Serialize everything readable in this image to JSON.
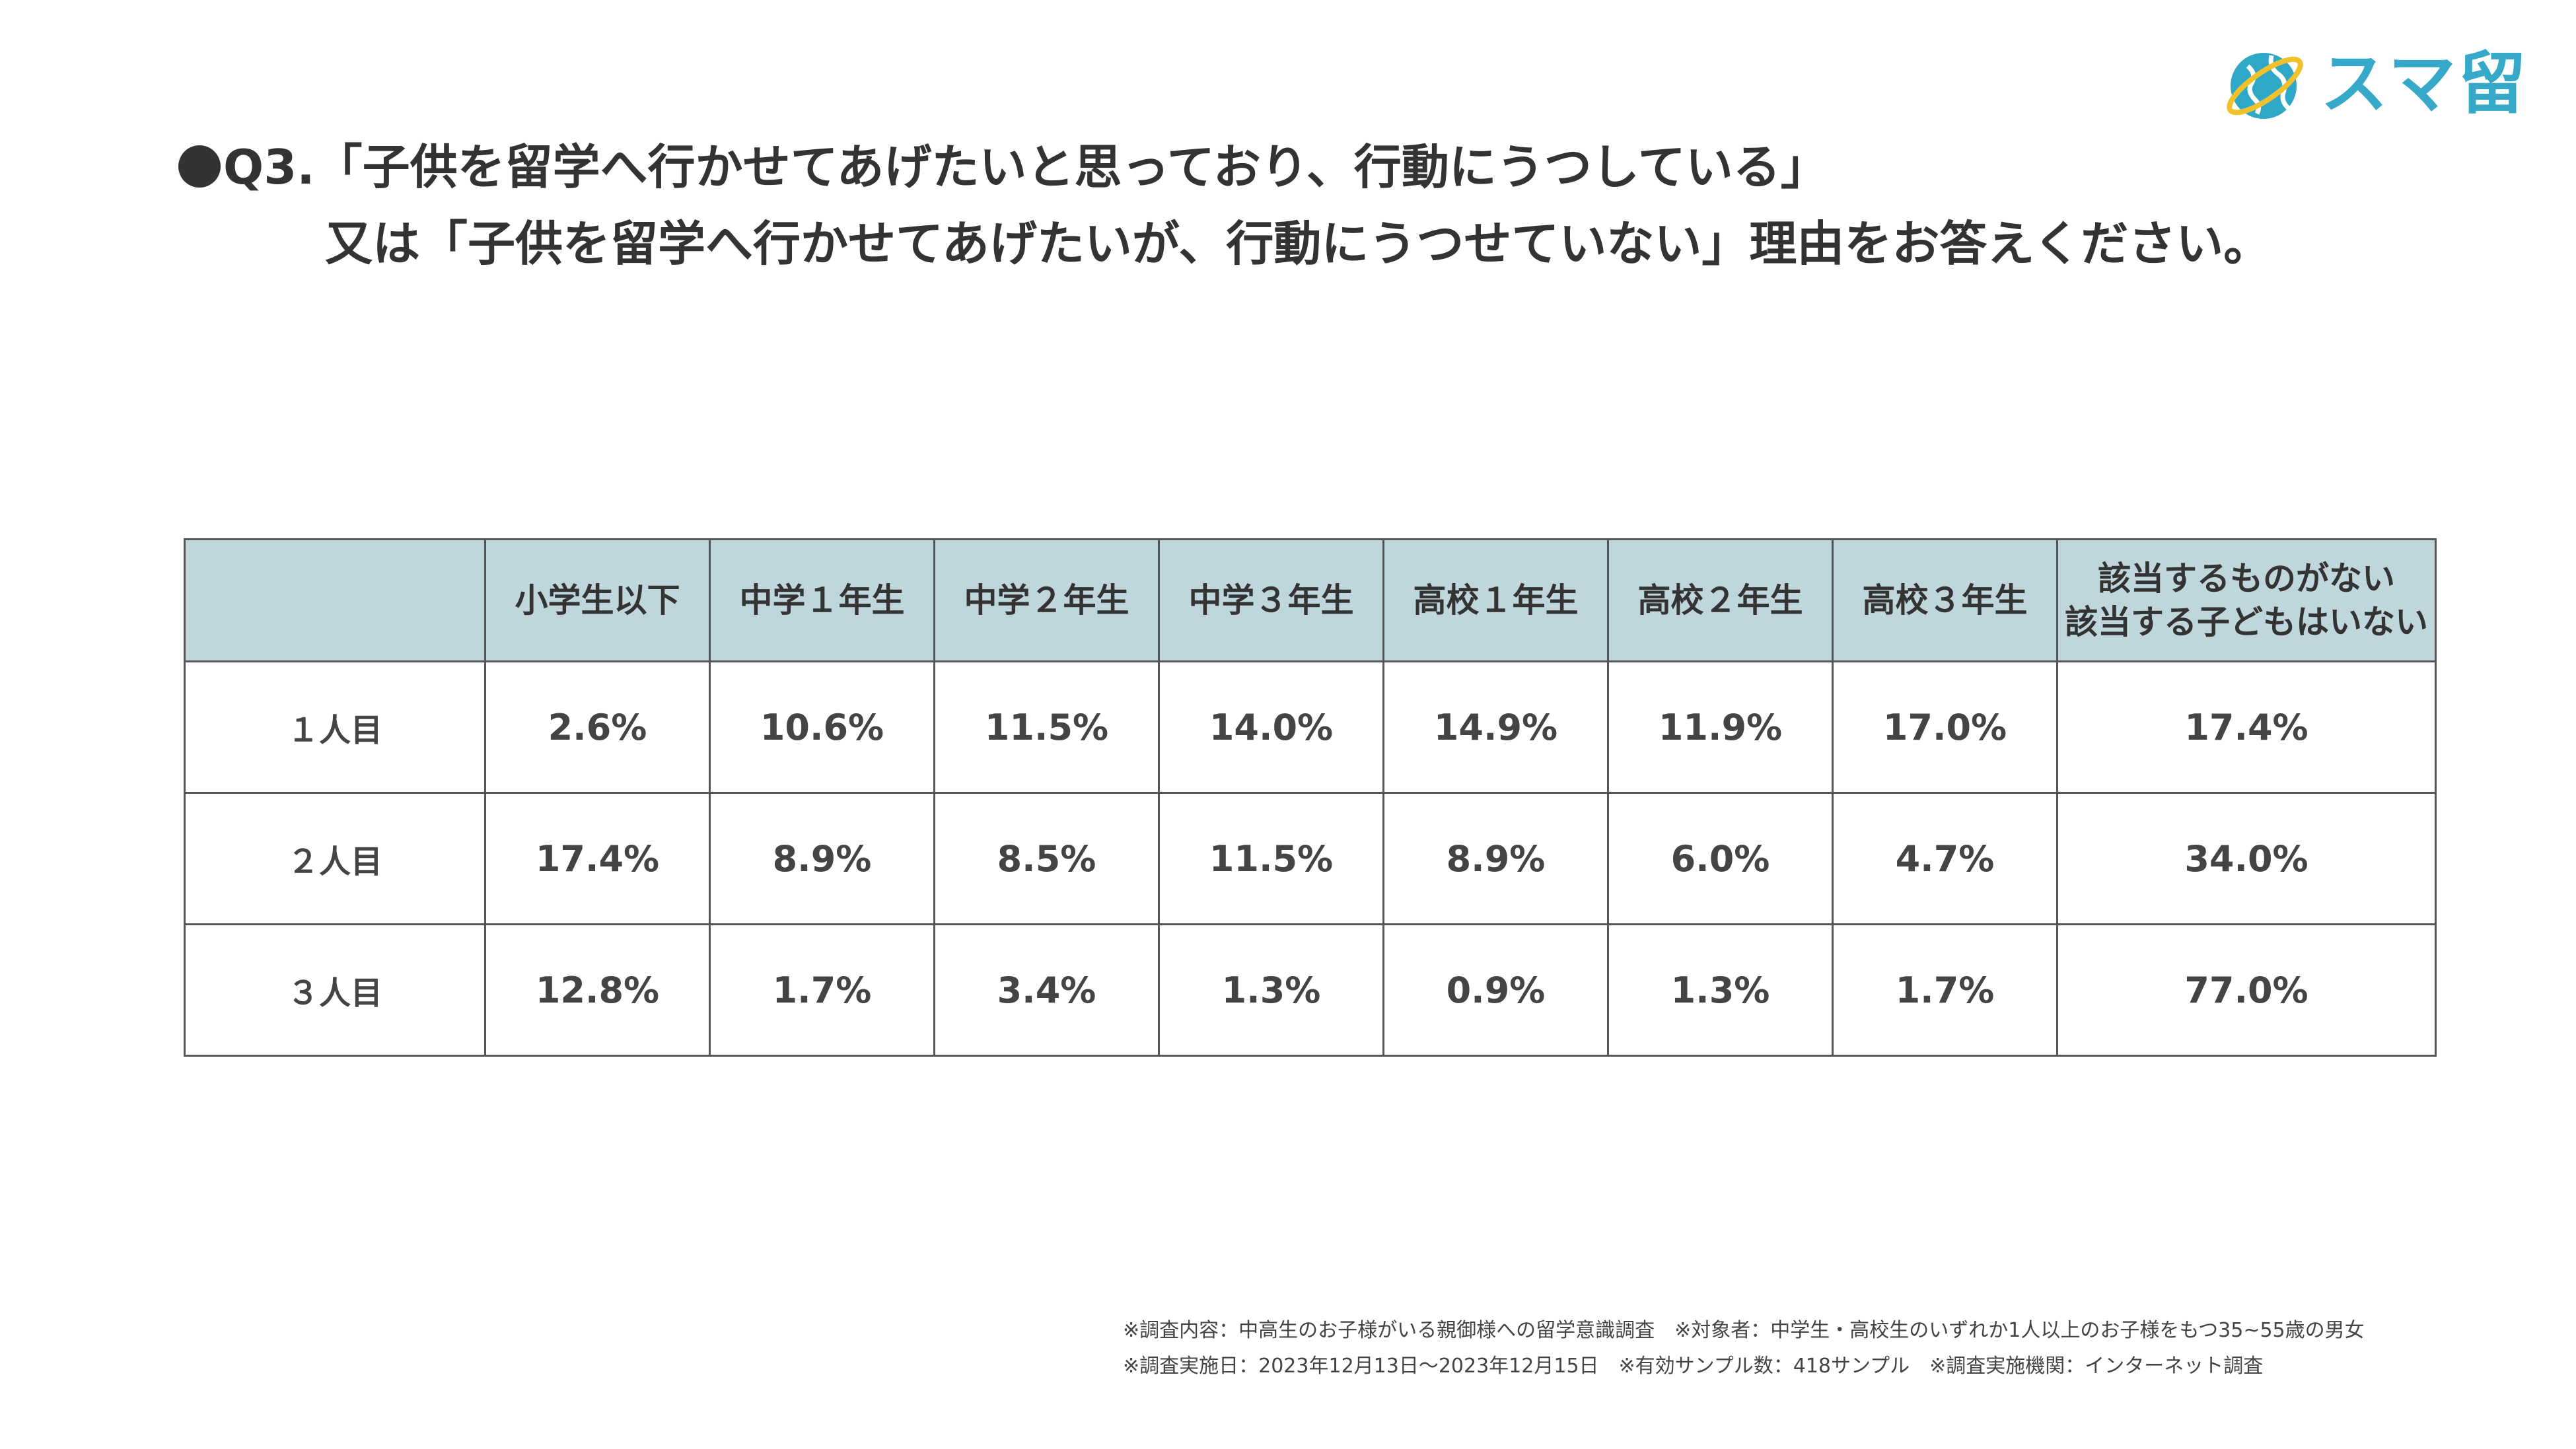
{
  "title": {
    "line1": "Q3.「子供を留学へ行かせてあげたいと思っており、行動にうつしている」",
    "line2": "又は「子供を留学へ行かせてあげたいが、行動にうつせていない」理由をお答えください。"
  },
  "logo": {
    "text": "スマ留",
    "globe_color": "#2fa8c8",
    "ring_color": "#f1c12b",
    "text_color": "#36a9c9"
  },
  "chart_data": {
    "type": "table",
    "columns": [
      {
        "line1": "小学生以下",
        "line2": ""
      },
      {
        "line1": "中学１年生",
        "line2": ""
      },
      {
        "line1": "中学２年生",
        "line2": ""
      },
      {
        "line1": "中学３年生",
        "line2": ""
      },
      {
        "line1": "高校１年生",
        "line2": ""
      },
      {
        "line1": "高校２年生",
        "line2": ""
      },
      {
        "line1": "高校３年生",
        "line2": ""
      },
      {
        "line1": "該当するものがない",
        "line2": "該当する子どもはいない"
      }
    ],
    "rows": [
      {
        "label": "１人目",
        "values": [
          "2.6%",
          "10.6%",
          "11.5%",
          "14.0%",
          "14.9%",
          "11.9%",
          "17.0%",
          "17.4%"
        ]
      },
      {
        "label": "２人目",
        "values": [
          "17.4%",
          "8.9%",
          "8.5%",
          "11.5%",
          "8.9%",
          "6.0%",
          "4.7%",
          "34.0%"
        ]
      },
      {
        "label": "３人目",
        "values": [
          "12.8%",
          "1.7%",
          "3.4%",
          "1.3%",
          "0.9%",
          "1.3%",
          "1.7%",
          "77.0%"
        ]
      }
    ],
    "header_color": "#bfd7dc"
  },
  "footnotes": {
    "line1": "※調査内容：中高生のお子様がいる親御様への留学意識調査　※対象者：中学生・高校生のいずれか1人以上のお子様をもつ35~55歳の男女",
    "line2": "※調査実施日：2023年12月13日～2023年12月15日　※有効サンプル数：418サンプル　※調査実施機関：インターネット調査"
  }
}
